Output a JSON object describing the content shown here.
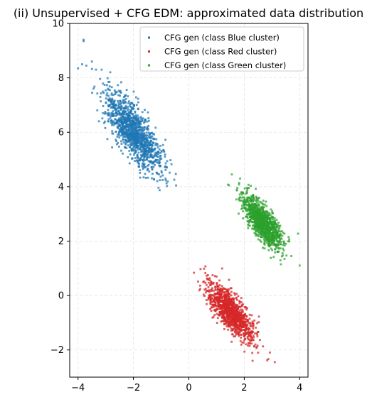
{
  "chart_data": {
    "type": "scatter",
    "title": "(ii) Unsupervised + CFG EDM: approximated data distribution",
    "xlabel": "",
    "ylabel": "",
    "xlim": [
      -4.3,
      4.3
    ],
    "ylim": [
      -3.0,
      10.0
    ],
    "x_ticks": [
      -4,
      -2,
      0,
      2,
      4
    ],
    "y_ticks": [
      -2,
      0,
      2,
      4,
      6,
      8,
      10
    ],
    "x_tick_labels": [
      "−4",
      "−2",
      "0",
      "2",
      "4"
    ],
    "y_tick_labels": [
      "−2",
      "0",
      "2",
      "4",
      "6",
      "8",
      "10"
    ],
    "grid": true,
    "legend_position": "top-right",
    "series": [
      {
        "name": "CFG gen (class Blue cluster)",
        "color": "#1f77b4",
        "center": [
          -2.0,
          6.0
        ],
        "principal_axis": [
          0.5,
          -0.8
        ],
        "spread_major": 0.85,
        "spread_minor": 0.28,
        "n_points": 1200,
        "outliers": [
          [
            -3.8,
            9.4
          ],
          [
            -3.8,
            9.35
          ],
          [
            -4.0,
            8.35
          ],
          [
            -3.7,
            8.45
          ],
          [
            -3.85,
            8.5
          ],
          [
            -3.5,
            8.6
          ],
          [
            -3.35,
            8.3
          ]
        ]
      },
      {
        "name": "CFG gen (class Red cluster)",
        "color": "#d62728",
        "center": [
          1.5,
          -0.6
        ],
        "principal_axis": [
          0.55,
          -0.75
        ],
        "spread_major": 0.62,
        "spread_minor": 0.22,
        "n_points": 1100,
        "outliers": [
          [
            3.1,
            -2.45
          ],
          [
            2.3,
            -2.4
          ],
          [
            2.5,
            -2.1
          ],
          [
            0.7,
            0.6
          ],
          [
            2.4,
            -1.8
          ]
        ]
      },
      {
        "name": "CFG gen (class Green cluster)",
        "color": "#2ca02c",
        "center": [
          2.65,
          2.7
        ],
        "principal_axis": [
          0.5,
          -0.78
        ],
        "spread_major": 0.55,
        "spread_minor": 0.2,
        "n_points": 1100,
        "outliers": [
          [
            1.55,
            4.45
          ],
          [
            1.45,
            4.05
          ],
          [
            4.0,
            1.1
          ],
          [
            3.7,
            1.45
          ],
          [
            3.6,
            2.15
          ],
          [
            1.85,
            4.3
          ],
          [
            3.5,
            1.9
          ]
        ]
      }
    ]
  }
}
